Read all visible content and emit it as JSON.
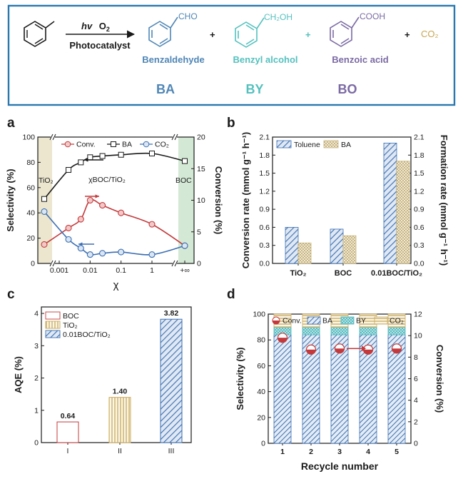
{
  "scheme": {
    "reagent_hv": "hv",
    "reagent_o2": "O",
    "reagent_o2_sub": "2",
    "catalyst": "Photocatalyst",
    "plus": "+",
    "products": [
      {
        "formula": "CHO",
        "name": "Benzaldehyde",
        "abbr": "BA",
        "color": "#4f86b5"
      },
      {
        "formula": "CH₂OH",
        "name": "Benzyl alcohol",
        "abbr": "BY",
        "color": "#55c1be"
      },
      {
        "formula": "COOH",
        "name": "Benzoic acid",
        "abbr": "BO",
        "color": "#7b6aa4"
      }
    ],
    "co2_label": "CO₂",
    "co2_color": "#c7a652"
  },
  "chart_data": [
    {
      "panel": "a",
      "type": "line",
      "ylabel_left": "Selectivity (%)",
      "ylabel_right": "Conversion (%)",
      "xlabel": "χ",
      "ylim_left": [
        0,
        100
      ],
      "yticks_left": [
        "0",
        "20",
        "40",
        "60",
        "80",
        "100"
      ],
      "ylim_right": [
        0,
        20
      ],
      "yticks_right": [
        "0",
        "5",
        "10",
        "15",
        "20"
      ],
      "xscale": "log, with broken ends",
      "xticks": [
        "0.001",
        "0.01",
        "0.1",
        "1",
        "+∞"
      ],
      "region_labels": {
        "left": "TiO₂",
        "middle": "χBOC/TiO₂",
        "right": "BOC"
      },
      "region_colors": {
        "left": "#ece6cf",
        "right": "#d3e9d5"
      },
      "series": [
        {
          "name": "Conv.",
          "axis": "right",
          "color": "#c4393b",
          "x": [
            "TiO₂",
            0.002,
            0.005,
            0.01,
            0.025,
            0.1,
            1,
            "BOC"
          ],
          "values": [
            3.0,
            5.6,
            7.0,
            10.0,
            9.2,
            8.0,
            6.2,
            2.8
          ]
        },
        {
          "name": "BA",
          "axis": "left",
          "color": "#1a1a1a",
          "x": [
            "TiO₂",
            0.002,
            0.005,
            0.01,
            0.025,
            0.1,
            1,
            "BOC"
          ],
          "values": [
            51,
            74,
            80,
            84,
            85,
            86,
            87,
            81
          ]
        },
        {
          "name": "CO₂",
          "axis": "left",
          "color": "#3b6fb3",
          "x": [
            "TiO₂",
            0.002,
            0.005,
            0.01,
            0.025,
            0.1,
            1,
            "BOC"
          ],
          "values": [
            41,
            19,
            12,
            7,
            8,
            9,
            7,
            14
          ]
        }
      ]
    },
    {
      "panel": "b",
      "type": "bar",
      "ylabel_left": "Conversion rate (mmol g⁻¹ h⁻¹)",
      "ylabel_right": "Formation rate (mmol g⁻¹ h⁻¹)",
      "ylim": [
        0,
        2.1
      ],
      "yticks": [
        "0.0",
        "0.3",
        "0.6",
        "0.9",
        "1.2",
        "1.5",
        "1.8",
        "2.1"
      ],
      "categories": [
        "TiO₂",
        "BOC",
        "0.01BOC/TiO₂"
      ],
      "series": [
        {
          "name": "Toluene",
          "color": "#3b6fb3",
          "values": [
            0.6,
            0.57,
            2.0
          ]
        },
        {
          "name": "BA",
          "color": "#c9b47a",
          "values": [
            0.34,
            0.46,
            1.7
          ]
        }
      ]
    },
    {
      "panel": "c",
      "type": "bar",
      "ylabel": "AQE (%)",
      "ylim": [
        0,
        4.2
      ],
      "yticks": [
        "0",
        "1",
        "2",
        "3",
        "4"
      ],
      "categories": [
        "I",
        "II",
        "III"
      ],
      "series": [
        {
          "name": "BOC",
          "color": "#c4393b"
        },
        {
          "name": "TiO₂",
          "color": "#c9a95a"
        },
        {
          "name": "0.01BOC/TiO₂",
          "color": "#3b6fb3"
        }
      ],
      "values": [
        0.64,
        1.4,
        3.82
      ],
      "data_labels": [
        "0.64",
        "1.40",
        "3.82"
      ]
    },
    {
      "panel": "d",
      "type": "bar",
      "ylabel_left": "Selectivity (%)",
      "ylabel_right": "Conversion (%)",
      "xlabel": "Recycle number",
      "ylim_left": [
        0,
        100
      ],
      "yticks_left": [
        "0",
        "20",
        "40",
        "60",
        "80",
        "100"
      ],
      "ylim_right": [
        0,
        12
      ],
      "yticks_right": [
        "0",
        "2",
        "4",
        "6",
        "8",
        "10",
        "12"
      ],
      "categories": [
        "1",
        "2",
        "3",
        "4",
        "5"
      ],
      "series": [
        {
          "name": "BA",
          "type": "stacked-bar",
          "color": "#3b6fb3",
          "values": [
            84,
            84,
            84,
            84,
            84
          ]
        },
        {
          "name": "BY",
          "type": "stacked-bar",
          "color": "#4fb8bd",
          "values": [
            6,
            6,
            6,
            6,
            6
          ]
        },
        {
          "name": "CO₂",
          "type": "stacked-bar",
          "color": "#c9a95a",
          "values": [
            10,
            10,
            10,
            10,
            10
          ]
        },
        {
          "name": "Conv.",
          "type": "scatter",
          "axis": "right",
          "color": "#c4393b",
          "values": [
            9.8,
            8.7,
            8.8,
            8.7,
            8.8
          ]
        }
      ]
    }
  ],
  "panel_letters": [
    "a",
    "b",
    "c",
    "d"
  ]
}
